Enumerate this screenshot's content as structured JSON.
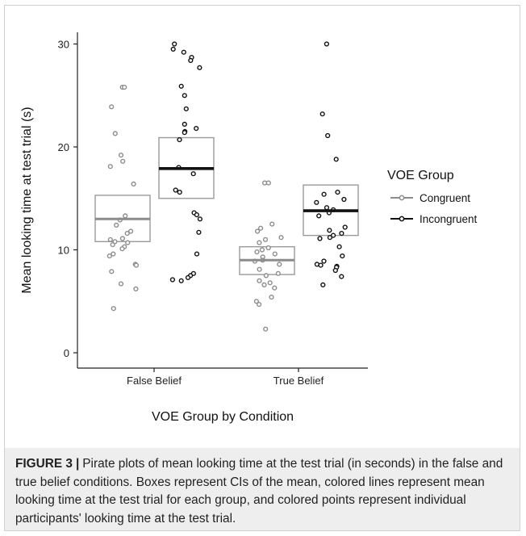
{
  "colors": {
    "congruent": "#8c8c8c",
    "incongruent": "#111111",
    "box_stroke": "#9a9a9a",
    "axis": "#222222",
    "caption_bg": "#eeeeee"
  },
  "chart_data": {
    "type": "scatter",
    "subtype": "pirate-plot",
    "title": "",
    "xlabel": "VOE Group by Condition",
    "ylabel": "Mean looking time at test trial (s)",
    "ylim": [
      0,
      32
    ],
    "yticks": [
      0,
      10,
      20,
      30
    ],
    "categories": [
      "False Belief",
      "True Belief"
    ],
    "grid": false,
    "legend": {
      "title": "VOE Group",
      "position": "right",
      "entries": [
        "Congruent",
        "Incongruent"
      ]
    },
    "series": [
      {
        "name": "Congruent",
        "color": "#8c8c8c",
        "groups": [
          {
            "category": "False Belief",
            "mean": 13.0,
            "ci": [
              10.8,
              15.3
            ],
            "points": [
              25.8,
              25.8,
              23.9,
              21.3,
              19.2,
              18.6,
              18.1,
              16.4,
              13.3,
              12.9,
              12.4,
              11.8,
              11.6,
              11.0,
              11.1,
              10.8,
              10.7,
              10.5,
              10.3,
              10.1,
              9.6,
              9.4,
              8.6,
              8.5,
              7.9,
              6.7,
              6.2,
              4.3
            ]
          },
          {
            "category": "True Belief",
            "mean": 9.0,
            "ci": [
              7.6,
              10.3
            ],
            "points": [
              16.5,
              16.5,
              12.5,
              12.1,
              11.8,
              11.2,
              11.0,
              10.7,
              10.2,
              10.0,
              9.8,
              9.6,
              9.3,
              9.0,
              8.9,
              8.6,
              8.1,
              7.7,
              7.5,
              7.0,
              6.8,
              6.6,
              6.3,
              5.4,
              5.0,
              4.7,
              2.3
            ]
          }
        ]
      },
      {
        "name": "Incongruent",
        "color": "#111111",
        "groups": [
          {
            "category": "False Belief",
            "mean": 17.9,
            "ci": [
              15.0,
              20.9
            ],
            "points": [
              30.0,
              29.5,
              29.2,
              28.7,
              28.4,
              27.7,
              25.9,
              25.0,
              23.7,
              22.2,
              21.8,
              21.5,
              21.4,
              20.7,
              18.0,
              17.4,
              15.8,
              15.6,
              13.6,
              13.4,
              13.0,
              11.7,
              9.6,
              7.7,
              7.5,
              7.3,
              7.1,
              7.0
            ]
          },
          {
            "category": "True Belief",
            "mean": 13.8,
            "ci": [
              11.4,
              16.3
            ],
            "points": [
              30.0,
              23.2,
              21.1,
              18.8,
              15.6,
              15.4,
              14.9,
              14.6,
              14.1,
              13.9,
              13.6,
              13.3,
              12.2,
              11.9,
              11.6,
              11.4,
              11.2,
              11.1,
              10.3,
              9.4,
              8.9,
              8.6,
              8.5,
              8.4,
              8.3,
              8.0,
              7.4,
              6.6
            ]
          }
        ]
      }
    ]
  },
  "caption": {
    "label": "FIGURE 3",
    "separator": "|",
    "text": "Pirate plots of mean looking time at the test trial (in seconds) in the false and true belief conditions. Boxes represent CIs of the mean, colored lines represent mean looking time at the test trial for each group, and colored points represent individual participants' looking time at the test trial."
  }
}
